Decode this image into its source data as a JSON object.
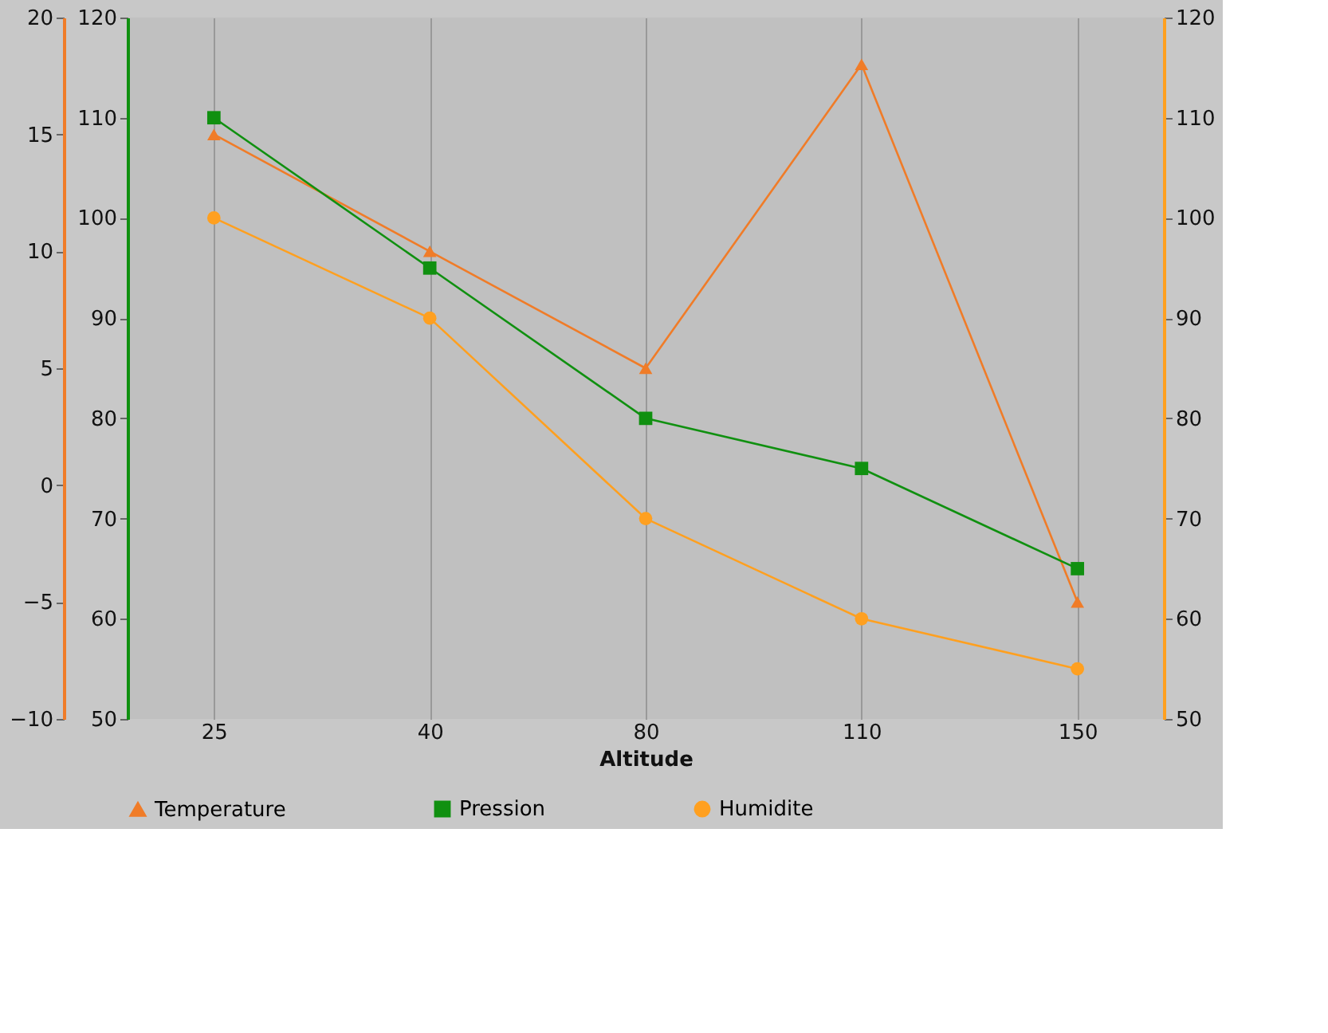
{
  "chart_data": {
    "type": "line",
    "xlabel": "Altitude",
    "categories": [
      "25",
      "40",
      "80",
      "110",
      "150"
    ],
    "ylim": [
      -10,
      20
    ],
    "yticks": [
      -10,
      -5,
      0,
      5,
      10,
      15,
      20
    ],
    "y2lim": [
      50,
      120
    ],
    "y2ticks": [
      50,
      60,
      70,
      80,
      90,
      100,
      110,
      120
    ],
    "y3lim": [
      50,
      120
    ],
    "y3ticks": [
      50,
      60,
      70,
      80,
      90,
      100,
      110,
      120
    ],
    "grid": "x",
    "legend": "bottom",
    "series": [
      {
        "name": "Temperature",
        "color": "#f07c28",
        "axis": "y",
        "marker": "triangle",
        "values": [
          15,
          10,
          5,
          18,
          -5
        ]
      },
      {
        "name": "Pression",
        "color": "#109010",
        "axis": "y2",
        "marker": "square",
        "values": [
          110,
          95,
          80,
          75,
          65
        ]
      },
      {
        "name": "Humidite",
        "color": "#ffa020",
        "axis": "y3",
        "marker": "circle",
        "values": [
          100,
          90,
          70,
          60,
          55
        ]
      }
    ]
  }
}
